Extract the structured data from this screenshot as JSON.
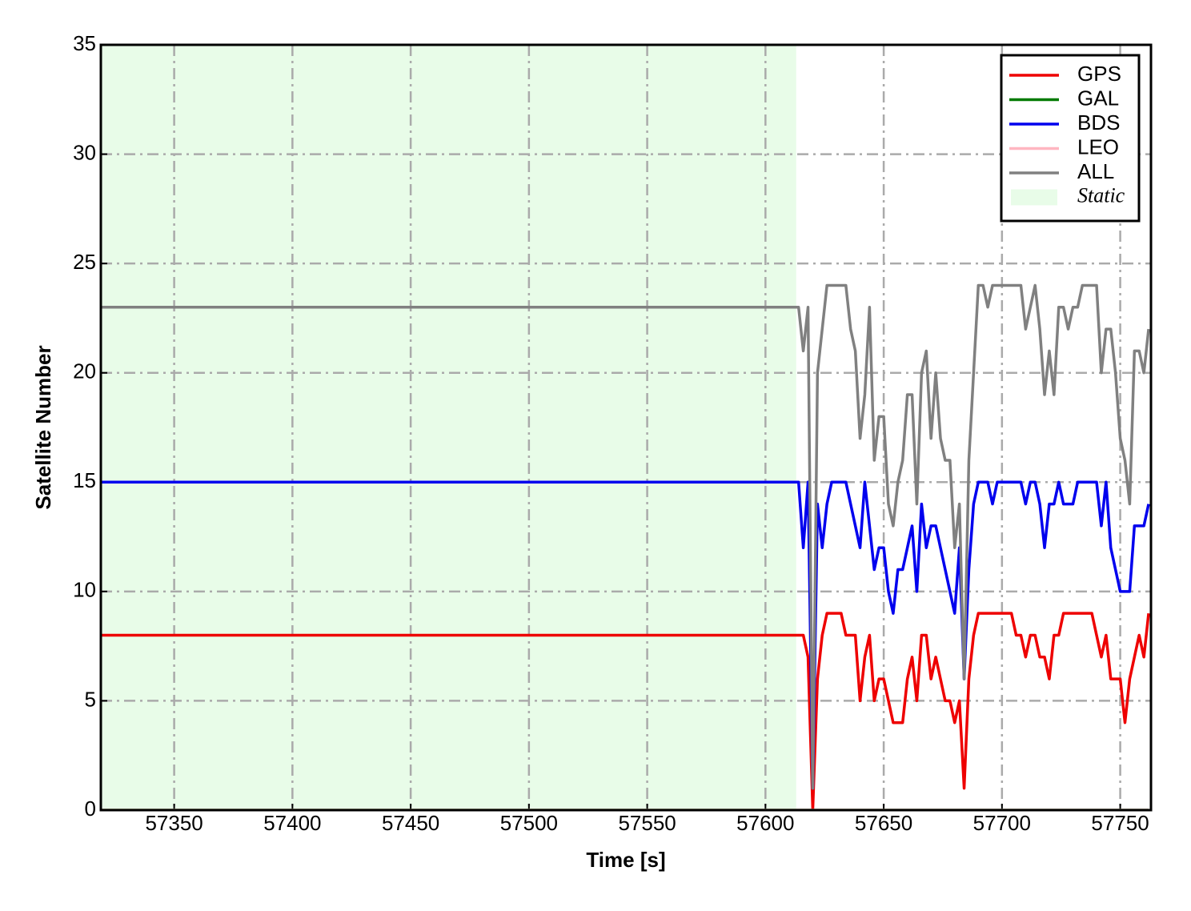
{
  "chart_data": {
    "type": "line",
    "xlabel": "Time [s]",
    "ylabel": "Satellite Number",
    "xlim": [
      57319,
      57763
    ],
    "ylim": [
      0,
      35
    ],
    "xticks": [
      57350,
      57400,
      57450,
      57500,
      57550,
      57600,
      57650,
      57700,
      57750
    ],
    "yticks": [
      0,
      5,
      10,
      15,
      20,
      25,
      30,
      35
    ],
    "grid": true,
    "legend": "upper right",
    "shaded_region": {
      "label": "Static",
      "x": [
        57319,
        57613
      ],
      "color": "#e8fce8"
    },
    "x": [
      57319,
      57614,
      57616,
      57618,
      57620,
      57622,
      57624,
      57626,
      57628,
      57630,
      57632,
      57634,
      57636,
      57638,
      57640,
      57642,
      57644,
      57646,
      57648,
      57650,
      57652,
      57654,
      57656,
      57658,
      57660,
      57662,
      57664,
      57666,
      57668,
      57670,
      57672,
      57674,
      57676,
      57678,
      57680,
      57682,
      57684,
      57686,
      57688,
      57690,
      57692,
      57694,
      57696,
      57698,
      57700,
      57702,
      57704,
      57706,
      57708,
      57710,
      57712,
      57714,
      57716,
      57718,
      57720,
      57722,
      57724,
      57726,
      57728,
      57730,
      57732,
      57734,
      57736,
      57738,
      57740,
      57742,
      57744,
      57746,
      57748,
      57750,
      57752,
      57754,
      57756,
      57758,
      57760,
      57762
    ],
    "series": [
      {
        "name": "GPS",
        "color": "#ee0000",
        "values": [
          8,
          8,
          8,
          7,
          0,
          6,
          8,
          9,
          9,
          9,
          9,
          8,
          8,
          8,
          5,
          7,
          8,
          5,
          6,
          6,
          5,
          4,
          4,
          4,
          6,
          7,
          5,
          8,
          8,
          6,
          7,
          6,
          5,
          5,
          4,
          5,
          1,
          6,
          8,
          9,
          9,
          9,
          9,
          9,
          9,
          9,
          9,
          8,
          8,
          7,
          8,
          8,
          7,
          7,
          6,
          8,
          8,
          9,
          9,
          9,
          9,
          9,
          9,
          9,
          8,
          7,
          8,
          6,
          6,
          6,
          4,
          6,
          7,
          8,
          7,
          9
        ]
      },
      {
        "name": "GAL",
        "color": "#007a00",
        "values": [
          0,
          0,
          0,
          0,
          0,
          0,
          0,
          0,
          0,
          0,
          0,
          0,
          0,
          0,
          0,
          0,
          0,
          0,
          0,
          0,
          0,
          0,
          0,
          0,
          0,
          0,
          0,
          0,
          0,
          0,
          0,
          0,
          0,
          0,
          0,
          0,
          0,
          0,
          0,
          0,
          0,
          0,
          0,
          0,
          0,
          0,
          0,
          0,
          0,
          0,
          0,
          0,
          0,
          0,
          0,
          0,
          0,
          0,
          0,
          0,
          0,
          0,
          0,
          0,
          0,
          0,
          0,
          0,
          0,
          0,
          0,
          0,
          0,
          0,
          0,
          0
        ]
      },
      {
        "name": "BDS",
        "color": "#0000ee",
        "values": [
          15,
          15,
          12,
          15,
          1,
          14,
          12,
          14,
          15,
          15,
          15,
          15,
          14,
          13,
          12,
          15,
          13,
          11,
          12,
          12,
          10,
          9,
          11,
          11,
          12,
          13,
          10,
          14,
          12,
          13,
          13,
          12,
          11,
          10,
          9,
          12,
          6,
          11,
          14,
          15,
          15,
          15,
          14,
          15,
          15,
          15,
          15,
          15,
          15,
          14,
          15,
          15,
          14,
          12,
          14,
          14,
          15,
          14,
          14,
          14,
          15,
          15,
          15,
          15,
          15,
          13,
          15,
          12,
          11,
          10,
          10,
          10,
          13,
          13,
          13,
          14
        ]
      },
      {
        "name": "LEO",
        "color": "#ffb6c1",
        "values": [
          0,
          0,
          0,
          0,
          0,
          0,
          0,
          0,
          0,
          0,
          0,
          0,
          0,
          0,
          0,
          0,
          0,
          0,
          0,
          0,
          0,
          0,
          0,
          0,
          0,
          0,
          0,
          0,
          0,
          0,
          0,
          0,
          0,
          0,
          0,
          0,
          0,
          0,
          0,
          0,
          0,
          0,
          0,
          0,
          0,
          0,
          0,
          0,
          0,
          0,
          0,
          0,
          0,
          0,
          0,
          0,
          0,
          0,
          0,
          0,
          0,
          0,
          0,
          0,
          0,
          0,
          0,
          0,
          0,
          0,
          0,
          0,
          0,
          0,
          0,
          0
        ]
      },
      {
        "name": "ALL",
        "color": "#808080",
        "values": [
          23,
          23,
          21,
          23,
          1,
          20,
          22,
          24,
          24,
          24,
          24,
          24,
          22,
          21,
          17,
          19,
          23,
          16,
          18,
          18,
          14,
          13,
          15,
          16,
          19,
          19,
          14,
          20,
          21,
          17,
          20,
          17,
          16,
          16,
          12,
          14,
          6,
          16,
          20,
          24,
          24,
          23,
          24,
          24,
          24,
          24,
          24,
          24,
          24,
          22,
          23,
          24,
          22,
          19,
          21,
          19,
          23,
          23,
          22,
          23,
          23,
          24,
          24,
          24,
          24,
          20,
          22,
          22,
          20,
          17,
          16,
          14,
          21,
          21,
          20,
          22
        ]
      }
    ]
  }
}
